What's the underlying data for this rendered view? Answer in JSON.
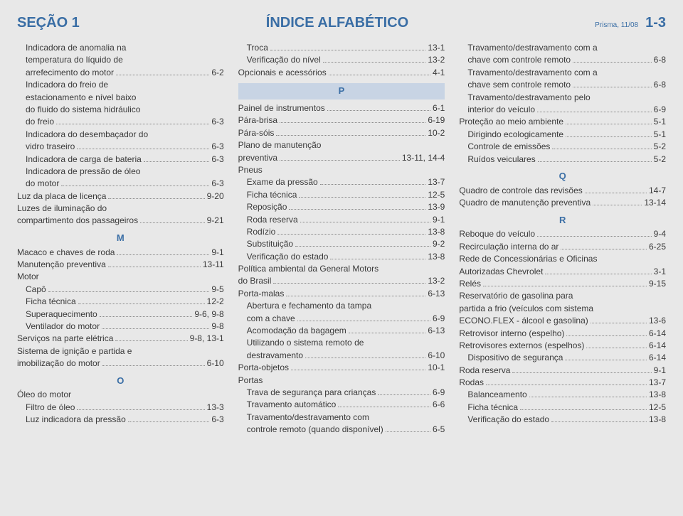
{
  "header": {
    "section": "SEÇÃO 1",
    "title": "ÍNDICE ALFABÉTICO",
    "edition": "Prisma, 11/08",
    "page": "1-3"
  },
  "colors": {
    "accent": "#3a6ea5",
    "background": "#e8e8e8",
    "letter_block_bg": "#c8d4e4",
    "text": "#3a3a3a",
    "dots": "#888888"
  },
  "typography": {
    "body_fontsize_pt": 9,
    "header_fontsize_pt": 15,
    "letter_fontsize_pt": 10,
    "font_family": "sans-serif"
  },
  "col1": {
    "e1_l1": "Indicadora de anomalia na",
    "e1_l2": "temperatura do líquido de",
    "e1_l3": "arrefecimento do motor",
    "e1_pg": "6-2",
    "e2_l1": "Indicadora do freio de",
    "e2_l2": "estacionamento e nível baixo",
    "e2_l3": "do fluido do sistema hidráulico",
    "e2_l4": "do freio",
    "e2_pg": "6-3",
    "e3_l1": "Indicadora do desembaçador do",
    "e3_l2": "vidro traseiro",
    "e3_pg": "6-3",
    "e4": "Indicadora de carga de bateria",
    "e4_pg": "6-3",
    "e5_l1": "Indicadora de pressão de óleo",
    "e5_l2": "do motor",
    "e5_pg": "6-3",
    "e6": "Luz da placa de licença",
    "e6_pg": "9-20",
    "e7_l1": "Luzes de iluminação do",
    "e7_l2": "compartimento dos passageiros",
    "e7_pg": "9-21",
    "letter_m": "M",
    "m1": "Macaco e chaves de roda",
    "m1_pg": "9-1",
    "m2": "Manutenção preventiva",
    "m2_pg": "13-11",
    "m3": "Motor",
    "m3a": "Capô",
    "m3a_pg": "9-5",
    "m3b": "Ficha técnica",
    "m3b_pg": "12-2",
    "m3c": "Superaquecimento",
    "m3c_pg": "9-6, 9-8",
    "m3d": "Ventilador do motor",
    "m3d_pg": "9-8",
    "m4": "Serviços na parte elétrica",
    "m4_pg": "9-8, 13-1",
    "m5_l1": "Sistema de ignição e partida e",
    "m5_l2": "imobilização do motor",
    "m5_pg": "6-10",
    "letter_o": "O",
    "o1": "Óleo do motor",
    "o1a": "Filtro de óleo",
    "o1a_pg": "13-3",
    "o1b": "Luz indicadora da pressão",
    "o1b_pg": "6-3"
  },
  "col2": {
    "t1": "Troca",
    "t1_pg": "13-1",
    "t2": "Verificação do nível",
    "t2_pg": "13-2",
    "t3": "Opcionais e acessórios",
    "t3_pg": "4-1",
    "letter_p": "P",
    "p1": "Painel de instrumentos",
    "p1_pg": "6-1",
    "p2": "Pára-brisa",
    "p2_pg": "6-19",
    "p3": "Pára-sóis",
    "p3_pg": "10-2",
    "p4_l1": "Plano de manutenção",
    "p4_l2": "preventiva",
    "p4_pg": "13-11, 14-4",
    "p5": "Pneus",
    "p5a": "Exame da pressão",
    "p5a_pg": "13-7",
    "p5b": "Ficha técnica",
    "p5b_pg": "12-5",
    "p5c": "Reposição",
    "p5c_pg": "13-9",
    "p5d": "Roda reserva",
    "p5d_pg": "9-1",
    "p5e": "Rodízio",
    "p5e_pg": "13-8",
    "p5f": "Substituição",
    "p5f_pg": "9-2",
    "p5g": "Verificação do estado",
    "p5g_pg": "13-8",
    "p6_l1": "Política ambiental da General Motors",
    "p6_l2": "do Brasil",
    "p6_pg": "13-2",
    "p7": "Porta-malas",
    "p7_pg": "6-13",
    "p7a_l1": "Abertura e fechamento da tampa",
    "p7a_l2": "com a chave",
    "p7a_pg": "6-9",
    "p7b": "Acomodação da bagagem",
    "p7b_pg": "6-13",
    "p7c_l1": "Utilizando o sistema remoto de",
    "p7c_l2": "destravamento",
    "p7c_pg": "6-10",
    "p8": "Porta-objetos",
    "p8_pg": "10-1",
    "p9": "Portas",
    "p9a": "Trava de segurança para crianças",
    "p9a_pg": "6-9",
    "p9b": "Travamento automático",
    "p9b_pg": "6-6",
    "p9c_l1": "Travamento/destravamento com",
    "p9c_l2": "controle remoto (quando disponível)",
    "p9c_pg": "6-5"
  },
  "col3": {
    "c1_l1": "Travamento/destravamento com a",
    "c1_l2": "chave com controle remoto",
    "c1_pg": "6-8",
    "c2_l1": "Travamento/destravamento com a",
    "c2_l2": "chave sem controle remoto",
    "c2_pg": "6-8",
    "c3_l1": "Travamento/destravamento pelo",
    "c3_l2": "interior do veículo",
    "c3_pg": "6-9",
    "c4": "Proteção ao meio ambiente",
    "c4_pg": "5-1",
    "c5": "Dirigindo ecologicamente",
    "c5_pg": "5-1",
    "c6": "Controle de emissões",
    "c6_pg": "5-2",
    "c7": "Ruídos veiculares",
    "c7_pg": "5-2",
    "letter_q": "Q",
    "q1": "Quadro de controle das revisões",
    "q1_pg": "14-7",
    "q2": "Quadro de manutenção preventiva",
    "q2_pg": "13-14",
    "letter_r": "R",
    "r1": "Reboque do veículo",
    "r1_pg": "9-4",
    "r2": "Recirculação interna do ar",
    "r2_pg": "6-25",
    "r3_l1": "Rede de Concessionárias e Oficinas",
    "r3_l2": "Autorizadas Chevrolet",
    "r3_pg": "3-1",
    "r4": "Relés",
    "r4_pg": "9-15",
    "r5_l1": "Reservatório de gasolina para",
    "r5_l2": "partida a frio (veículos com sistema",
    "r5_l3": "ECONO.FLEX - álcool e gasolina)",
    "r5_pg": "13-6",
    "r6": "Retrovisor interno (espelho)",
    "r6_pg": "6-14",
    "r7": "Retrovisores externos (espelhos)",
    "r7_pg": "6-14",
    "r7a": "Dispositivo de segurança",
    "r7a_pg": "6-14",
    "r8": "Roda reserva",
    "r8_pg": "9-1",
    "r9": "Rodas",
    "r9_pg": "13-7",
    "r9a": "Balanceamento",
    "r9a_pg": "13-8",
    "r9b": "Ficha técnica",
    "r9b_pg": "12-5",
    "r9c": "Verificação do estado",
    "r9c_pg": "13-8"
  }
}
